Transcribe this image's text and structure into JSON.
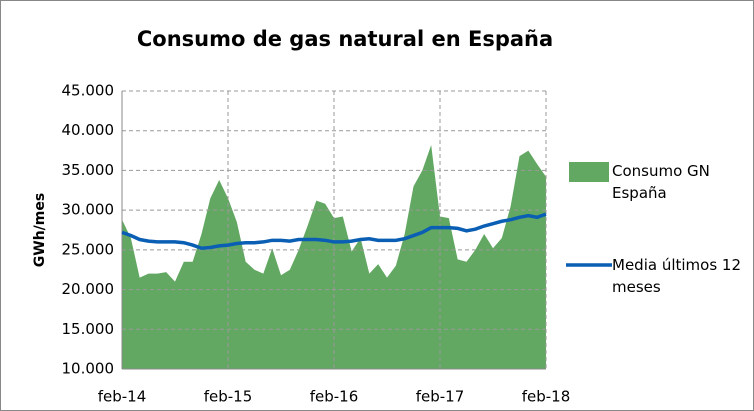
{
  "chart_data": {
    "type": "area-line",
    "title": "Consumo de gas natural en España",
    "y_label": "GWh/mes",
    "categories": [
      "feb-14",
      null,
      null,
      null,
      null,
      null,
      null,
      null,
      null,
      null,
      null,
      null,
      "feb-15",
      null,
      null,
      null,
      null,
      null,
      null,
      null,
      null,
      null,
      null,
      null,
      "feb-16",
      null,
      null,
      null,
      null,
      null,
      null,
      null,
      null,
      null,
      null,
      null,
      "feb-17",
      null,
      null,
      null,
      null,
      null,
      null,
      null,
      null,
      null,
      null,
      null,
      "feb-18"
    ],
    "series": [
      {
        "name": "Consumo GN España",
        "color": "#62a862",
        "kind": "area",
        "values": [
          28800,
          26500,
          21500,
          22000,
          22000,
          22200,
          21000,
          23500,
          23500,
          27000,
          31500,
          33800,
          31500,
          28500,
          23500,
          22500,
          22000,
          25200,
          21800,
          22500,
          25000,
          28000,
          31200,
          30800,
          29000,
          29200,
          24800,
          26500,
          22000,
          23200,
          21500,
          23000,
          27000,
          33000,
          35000,
          38200,
          29200,
          29000,
          23800,
          23500,
          25000,
          27000,
          25200,
          26500,
          30500,
          36800,
          37500,
          35800,
          34200
        ]
      },
      {
        "name": "Media últimos 12 meses",
        "color": "#0a5fb4",
        "kind": "line",
        "values": [
          27200,
          26800,
          26300,
          26100,
          26000,
          26000,
          26000,
          25900,
          25600,
          25200,
          25300,
          25500,
          25600,
          25800,
          25900,
          25900,
          26000,
          26200,
          26200,
          26100,
          26300,
          26300,
          26300,
          26200,
          26000,
          26000,
          26100,
          26300,
          26400,
          26200,
          26200,
          26200,
          26400,
          26800,
          27200,
          27800,
          27800,
          27800,
          27700,
          27400,
          27600,
          28000,
          28300,
          28600,
          28800,
          29100,
          29300,
          29100,
          29500
        ]
      }
    ],
    "ylim": [
      10000,
      45000
    ],
    "yticks": [
      {
        "value": 10000,
        "label": "10.000"
      },
      {
        "value": 15000,
        "label": "15.000"
      },
      {
        "value": 20000,
        "label": "20.000"
      },
      {
        "value": 25000,
        "label": "25.000"
      },
      {
        "value": 30000,
        "label": "30.000"
      },
      {
        "value": 35000,
        "label": "35.000"
      },
      {
        "value": 40000,
        "label": "40.000"
      },
      {
        "value": 45000,
        "label": "45.000"
      }
    ],
    "grid": true,
    "legend": "right"
  }
}
